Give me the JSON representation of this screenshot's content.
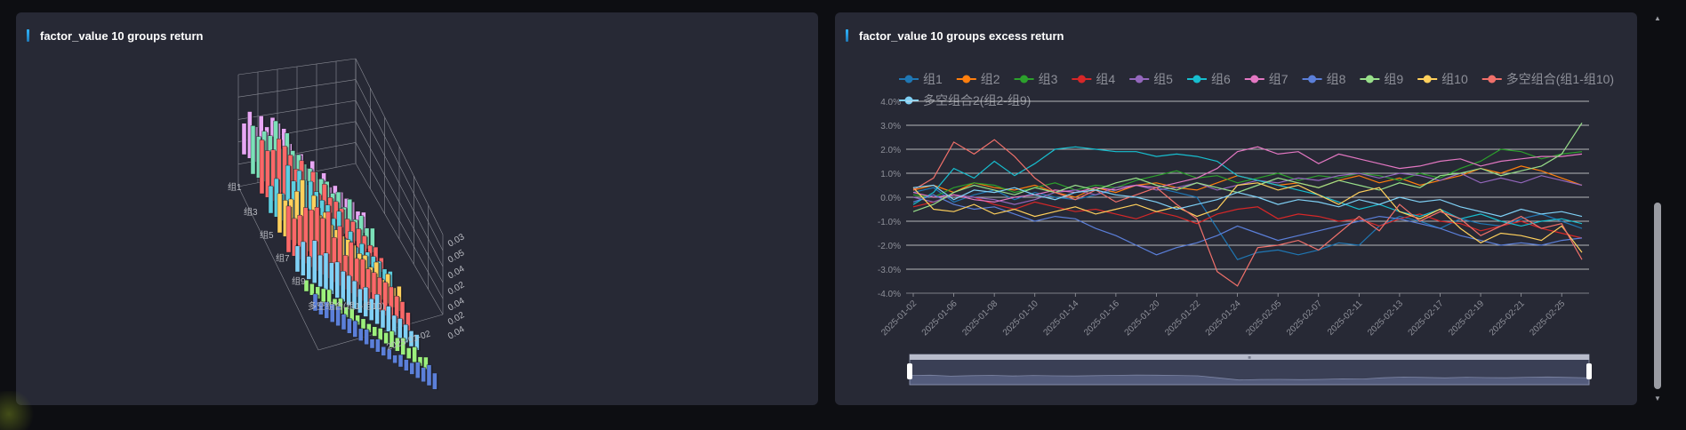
{
  "panels": {
    "left_title": "factor_value 10 groups return",
    "right_title": "factor_value 10 groups excess return"
  },
  "chart_data": [
    {
      "type": "bar3d",
      "title": "factor_value 10 groups return",
      "group_tick_labels": [
        "组1",
        "组3",
        "组5",
        "组7",
        "组9",
        "多空组合(组1-组10)"
      ],
      "value_tick_labels": [
        "0.03",
        "0.05",
        "0.04",
        "0.02",
        "0.04",
        "0.02",
        "0.04"
      ],
      "date_tick_label": "2025-01-02",
      "series_colors": [
        "#e8a7f5",
        "#7be0b8",
        "#fa6868",
        "#5ccfe0",
        "#ffd05c",
        "#fa6868",
        "#7fd0f5",
        "#9cf07c",
        "#5b7fd9"
      ],
      "series_heights": [
        [
          0.55,
          0.6,
          0.7,
          0.5,
          0.45,
          0.4,
          0.35,
          0.3,
          0.25
        ],
        [
          0.6,
          0.8,
          0.75,
          0.6,
          0.55,
          0.5,
          0.45,
          0.35,
          0.3
        ],
        [
          0.65,
          0.85,
          0.7,
          0.65,
          0.6,
          0.5,
          0.4,
          0.3,
          0.25
        ],
        [
          0.45,
          0.7,
          0.75,
          0.65,
          0.55,
          0.4,
          0.35,
          0.3,
          0.25
        ],
        [
          0.5,
          0.8,
          0.7,
          0.6,
          0.5,
          0.45,
          0.4,
          0.35,
          0.3
        ],
        [
          0.55,
          0.75,
          0.8,
          0.7,
          0.6,
          0.5,
          0.45,
          0.4,
          0.3
        ],
        [
          0.4,
          0.5,
          0.45,
          0.4,
          0.35,
          0.35,
          0.3,
          0.25,
          0.2
        ],
        [
          0.15,
          0.2,
          0.18,
          0.15,
          0.12,
          0.15,
          0.2,
          0.18,
          0.15
        ],
        [
          0.2,
          0.25,
          0.2,
          0.18,
          0.15,
          0.12,
          0.15,
          0.2,
          0.25
        ]
      ]
    },
    {
      "type": "line",
      "title": "factor_value 10 groups excess return",
      "x": [
        "2025-01-02",
        "2025-01-03",
        "2025-01-06",
        "2025-01-07",
        "2025-01-08",
        "2025-01-09",
        "2025-01-10",
        "2025-01-13",
        "2025-01-14",
        "2025-01-15",
        "2025-01-16",
        "2025-01-17",
        "2025-01-20",
        "2025-01-21",
        "2025-01-22",
        "2025-01-23",
        "2025-01-24",
        "2025-01-27",
        "2025-02-05",
        "2025-02-06",
        "2025-02-07",
        "2025-02-10",
        "2025-02-11",
        "2025-02-12",
        "2025-02-13",
        "2025-02-14",
        "2025-02-17",
        "2025-02-18",
        "2025-02-19",
        "2025-02-20",
        "2025-02-21",
        "2025-02-24",
        "2025-02-25",
        "2025-02-26"
      ],
      "x_tick_labels": [
        "2025-01-02",
        "2025-01-06",
        "2025-01-08",
        "2025-01-10",
        "2025-01-14",
        "2025-01-16",
        "2025-01-20",
        "2025-01-22",
        "2025-01-24",
        "2025-02-05",
        "2025-02-07",
        "2025-02-11",
        "2025-02-13",
        "2025-02-17",
        "2025-02-19",
        "2025-02-21",
        "2025-02-25"
      ],
      "y_tick_labels": [
        "4.0%",
        "3.0%",
        "2.0%",
        "1.0%",
        "0.0%",
        "-1.0%",
        "-2.0%",
        "-3.0%",
        "-4.0%"
      ],
      "ylim": [
        -4.0,
        4.0
      ],
      "grid": true,
      "legend": "top",
      "series": [
        {
          "name": "组1",
          "color": "#1f77b4",
          "values": [
            0.2,
            0.4,
            -0.2,
            0.1,
            0.3,
            -0.1,
            0.2,
            0.0,
            -0.1,
            0.1,
            0.3,
            0.5,
            0.4,
            0.2,
            0.0,
            -1.3,
            -2.6,
            -2.3,
            -2.2,
            -2.4,
            -2.2,
            -1.9,
            -2.0,
            -1.2,
            -0.8,
            -1.0,
            -1.3,
            -0.9,
            -1.1,
            -1.2,
            -0.9,
            -0.7,
            -1.0,
            -1.3
          ]
        },
        {
          "name": "组2",
          "color": "#ff7f0e",
          "values": [
            0.3,
            0.5,
            0.2,
            0.6,
            0.4,
            0.3,
            0.5,
            0.2,
            0.0,
            0.4,
            0.2,
            0.5,
            0.6,
            0.4,
            0.3,
            0.6,
            0.9,
            0.7,
            0.5,
            0.6,
            0.4,
            0.7,
            0.9,
            0.6,
            0.8,
            0.5,
            0.7,
            0.9,
            1.2,
            1.0,
            1.3,
            1.1,
            0.8,
            0.5
          ]
        },
        {
          "name": "组3",
          "color": "#2ca02c",
          "values": [
            0.1,
            0.0,
            0.4,
            0.6,
            0.5,
            0.2,
            0.4,
            0.6,
            0.3,
            0.5,
            0.4,
            0.7,
            0.9,
            1.1,
            0.8,
            0.9,
            0.6,
            0.8,
            1.0,
            0.7,
            0.9,
            0.8,
            1.0,
            0.9,
            0.7,
            1.0,
            0.8,
            1.2,
            1.5,
            2.0,
            1.9,
            1.6,
            1.8,
            1.9
          ]
        },
        {
          "name": "组4",
          "color": "#d62728",
          "values": [
            -0.4,
            -0.2,
            0.1,
            0.0,
            -0.3,
            -0.5,
            -0.2,
            -0.4,
            -0.6,
            -0.5,
            -0.7,
            -0.9,
            -0.6,
            -0.8,
            -1.1,
            -0.7,
            -0.5,
            -0.4,
            -0.9,
            -0.7,
            -0.8,
            -1.0,
            -0.9,
            -1.2,
            -0.9,
            -0.7,
            -1.0,
            -1.1,
            -1.4,
            -1.2,
            -1.0,
            -1.3,
            -1.5,
            -1.7
          ]
        },
        {
          "name": "组5",
          "color": "#9467bd",
          "values": [
            0.0,
            -0.2,
            0.1,
            0.0,
            -0.1,
            -0.3,
            -0.1,
            0.2,
            0.3,
            0.1,
            0.4,
            0.5,
            0.3,
            0.4,
            0.6,
            0.3,
            0.5,
            0.7,
            0.6,
            0.8,
            0.7,
            0.9,
            1.0,
            0.8,
            1.0,
            0.9,
            0.7,
            1.0,
            0.6,
            0.8,
            0.6,
            0.9,
            0.7,
            0.5
          ]
        },
        {
          "name": "组6",
          "color": "#17becf",
          "values": [
            -0.3,
            0.2,
            1.2,
            0.8,
            1.5,
            0.9,
            1.4,
            2.0,
            2.1,
            2.0,
            1.9,
            1.9,
            1.7,
            1.8,
            1.7,
            1.5,
            0.9,
            0.7,
            0.5,
            0.3,
            0.1,
            -0.2,
            -0.5,
            -0.3,
            -0.6,
            -0.8,
            -0.5,
            -0.9,
            -0.7,
            -1.0,
            -1.2,
            -1.0,
            -0.9,
            -1.1
          ]
        },
        {
          "name": "组7",
          "color": "#e377c2",
          "values": [
            0.2,
            0.0,
            0.1,
            -0.1,
            -0.2,
            0.0,
            0.1,
            0.3,
            0.2,
            0.4,
            0.3,
            0.5,
            0.4,
            0.6,
            0.8,
            1.2,
            1.9,
            2.1,
            1.8,
            1.9,
            1.4,
            1.8,
            1.6,
            1.4,
            1.2,
            1.3,
            1.5,
            1.6,
            1.3,
            1.5,
            1.6,
            1.7,
            1.7,
            1.8
          ]
        },
        {
          "name": "组8",
          "color": "#5b7fd9",
          "values": [
            -0.2,
            0.1,
            -0.3,
            -0.5,
            -0.4,
            -0.7,
            -1.0,
            -0.8,
            -0.9,
            -1.3,
            -1.6,
            -2.0,
            -2.4,
            -2.1,
            -1.9,
            -1.6,
            -1.2,
            -1.5,
            -1.8,
            -1.6,
            -1.4,
            -1.2,
            -1.0,
            -0.8,
            -0.9,
            -1.1,
            -1.3,
            -1.6,
            -1.8,
            -2.0,
            -1.9,
            -2.0,
            -1.8,
            -1.7
          ]
        },
        {
          "name": "组9",
          "color": "#98df8a",
          "values": [
            -0.6,
            -0.3,
            0.2,
            0.5,
            0.3,
            0.1,
            0.4,
            0.2,
            0.5,
            0.3,
            0.6,
            0.8,
            0.5,
            0.3,
            0.6,
            0.4,
            0.2,
            0.5,
            0.8,
            0.6,
            0.4,
            0.7,
            0.5,
            0.3,
            0.6,
            0.4,
            0.9,
            1.0,
            1.2,
            0.9,
            1.1,
            1.3,
            1.8,
            3.1
          ]
        },
        {
          "name": "组10",
          "color": "#ffd05c",
          "values": [
            0.4,
            -0.5,
            -0.6,
            -0.3,
            -0.7,
            -0.5,
            -0.8,
            -0.6,
            -0.4,
            -0.7,
            -0.5,
            -0.3,
            -0.6,
            -0.4,
            -0.8,
            -0.5,
            0.5,
            0.6,
            0.3,
            0.5,
            0.1,
            -0.3,
            0.2,
            0.4,
            -0.6,
            -0.9,
            -0.5,
            -1.3,
            -1.9,
            -1.5,
            -1.6,
            -1.8,
            -1.2,
            -2.3
          ]
        },
        {
          "name": "多空组合(组1-组10)",
          "color": "#f0706a",
          "values": [
            0.3,
            0.8,
            2.3,
            1.8,
            2.4,
            1.7,
            0.8,
            0.2,
            -0.1,
            0.3,
            -0.2,
            0.1,
            0.4,
            -0.3,
            -0.9,
            -3.1,
            -3.7,
            -2.1,
            -2.0,
            -1.8,
            -2.2,
            -1.5,
            -0.8,
            -1.4,
            -0.3,
            -1.0,
            -0.6,
            -0.9,
            -1.6,
            -1.2,
            -0.8,
            -1.3,
            -1.1,
            -2.6
          ]
        },
        {
          "name": "多空组合2(组2-组9)",
          "color": "#7fd0f5",
          "values": [
            0.4,
            0.5,
            -0.1,
            0.3,
            0.2,
            0.4,
            0.1,
            -0.1,
            0.2,
            0.3,
            0.1,
            0.0,
            -0.2,
            -0.5,
            -0.3,
            -0.1,
            0.2,
            0.0,
            -0.3,
            -0.1,
            -0.2,
            -0.4,
            -0.1,
            -0.3,
            0.0,
            -0.2,
            -0.1,
            -0.4,
            -0.6,
            -0.8,
            -0.5,
            -0.7,
            -0.6,
            -0.8
          ]
        }
      ]
    }
  ]
}
